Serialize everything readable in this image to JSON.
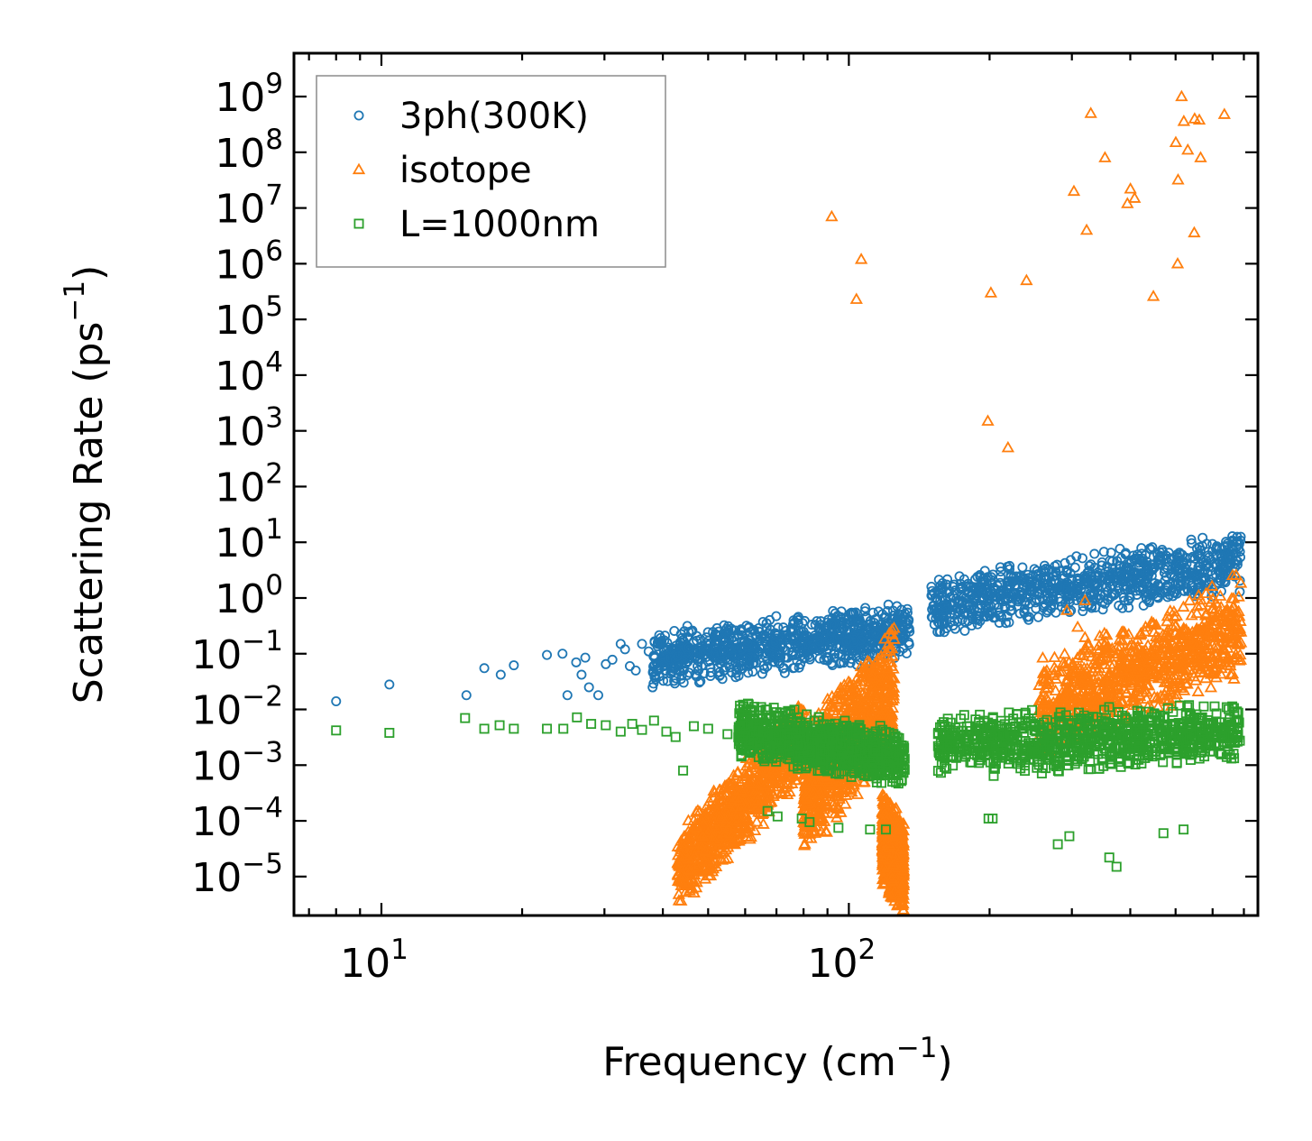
{
  "chart_data": {
    "type": "scatter",
    "title": "",
    "xlabel": "Frequency (cm",
    "xlabel_sup": "−1",
    "xlabel_end": ")",
    "ylabel": "Scattering Rate (ps",
    "ylabel_sup": "−1",
    "ylabel_end": ")",
    "xscale": "log",
    "yscale": "log",
    "xlim": [
      6.5,
      750
    ],
    "ylim": [
      2e-06,
      6000000000.0
    ],
    "x_ticks": [
      {
        "value": 10,
        "base": "10",
        "exp": "1"
      },
      {
        "value": 100,
        "base": "10",
        "exp": "2"
      }
    ],
    "y_ticks": [
      {
        "value": 1000000000.0,
        "base": "10",
        "exp": "9"
      },
      {
        "value": 100000000.0,
        "base": "10",
        "exp": "8"
      },
      {
        "value": 10000000.0,
        "base": "10",
        "exp": "7"
      },
      {
        "value": 1000000.0,
        "base": "10",
        "exp": "6"
      },
      {
        "value": 100000.0,
        "base": "10",
        "exp": "5"
      },
      {
        "value": 10000.0,
        "base": "10",
        "exp": "4"
      },
      {
        "value": 1000.0,
        "base": "10",
        "exp": "3"
      },
      {
        "value": 100.0,
        "base": "10",
        "exp": "2"
      },
      {
        "value": 10.0,
        "base": "10",
        "exp": "1"
      },
      {
        "value": 1.0,
        "base": "10",
        "exp": "0"
      },
      {
        "value": 0.1,
        "base": "10",
        "exp": "−1"
      },
      {
        "value": 0.01,
        "base": "10",
        "exp": "−2"
      },
      {
        "value": 0.001,
        "base": "10",
        "exp": "−3"
      },
      {
        "value": 0.0001,
        "base": "10",
        "exp": "−4"
      },
      {
        "value": 1e-05,
        "base": "10",
        "exp": "−5"
      }
    ],
    "legend_position": "upper-left",
    "series": [
      {
        "name": "3ph(300K)",
        "marker": "circle",
        "color": "#1f77b4",
        "points": [
          [
            8.0,
            0.014
          ],
          [
            10.4,
            0.028
          ],
          [
            15.2,
            0.018
          ],
          [
            16.6,
            0.055
          ],
          [
            18.0,
            0.042
          ],
          [
            19.2,
            0.062
          ],
          [
            22.6,
            0.095
          ],
          [
            24.4,
            0.1
          ],
          [
            25.0,
            0.018
          ],
          [
            26.1,
            0.07
          ],
          [
            26.8,
            0.042
          ],
          [
            27.3,
            0.085
          ],
          [
            27.8,
            0.025
          ],
          [
            29.1,
            0.018
          ],
          [
            30.2,
            0.065
          ],
          [
            31.2,
            0.078
          ],
          [
            32.5,
            0.15
          ],
          [
            33.2,
            0.12
          ],
          [
            34.0,
            0.06
          ],
          [
            35.0,
            0.05
          ],
          [
            36.1,
            0.15
          ],
          [
            37.3,
            0.11
          ],
          [
            38.4,
            0.16
          ],
          [
            39.0,
            0.15
          ],
          [
            40.3,
            0.06
          ],
          [
            41.7,
            0.12
          ],
          [
            43.0,
            0.09
          ],
          [
            44.3,
            0.05
          ],
          [
            45.5,
            0.13
          ],
          [
            47.0,
            0.09
          ],
          [
            48.4,
            0.06
          ],
          [
            50.0,
            0.12
          ],
          [
            52.0,
            0.075
          ],
          [
            54.0,
            0.05
          ],
          [
            56.3,
            0.09
          ],
          [
            98.7,
            0.45
          ]
        ],
        "bands": [
          {
            "x_from": 38,
            "x_to": 135,
            "y_from": 0.08,
            "y_to": 0.26,
            "y_spread": 0.55
          },
          {
            "x_from": 150,
            "x_to": 690,
            "y_from": 0.7,
            "y_to": 4.5,
            "y_spread": 0.6
          }
        ]
      },
      {
        "name": "isotope",
        "marker": "triangle",
        "color": "#ff7f0e",
        "points": [
          [
            91.9,
            7000000.0
          ],
          [
            103.8,
            230000.0
          ],
          [
            106.3,
            1200000.0
          ],
          [
            198.3,
            1500.0
          ],
          [
            201.3,
            300000.0
          ],
          [
            219.0,
            500
          ],
          [
            239.9,
            500000.0
          ],
          [
            303.0,
            20000000.0
          ],
          [
            322.6,
            4000000.0
          ],
          [
            329.3,
            500000000.0
          ],
          [
            353.1,
            80000000.0
          ],
          [
            394.4,
            12000000.0
          ],
          [
            400.3,
            22000000.0
          ],
          [
            408.6,
            15000000.0
          ],
          [
            448.2,
            260000.0
          ],
          [
            500.5,
            150000000.0
          ],
          [
            506.1,
            32000000.0
          ],
          [
            515.0,
            1000000000.0
          ],
          [
            520.7,
            360000000.0
          ],
          [
            531.0,
            110000000.0
          ],
          [
            548.1,
            3600000.0
          ],
          [
            549.2,
            400000000.0
          ],
          [
            562.0,
            380000000.0
          ],
          [
            565.6,
            80000000.0
          ],
          [
            635.8,
            480000000.0
          ],
          [
            505.1,
            1000000.0
          ],
          [
            320.0,
            0.9
          ],
          [
            292.7,
            0.6
          ],
          [
            308.7,
            0.3
          ]
        ],
        "bands": [
          {
            "x_from": 43,
            "x_to": 80,
            "y_from": 1.2e-05,
            "y_to": 0.003,
            "y_spread": 0.8
          },
          {
            "x_from": 80,
            "x_to": 125,
            "y_from": 0.0003,
            "y_to": 0.025,
            "y_spread": 1.3
          },
          {
            "x_from": 118,
            "x_to": 131,
            "y_from": 5e-05,
            "y_to": 1.5e-05,
            "y_spread": 0.9
          },
          {
            "x_from": 255,
            "x_to": 690,
            "y_from": 0.01,
            "y_to": 0.3,
            "y_spread": 1.0
          }
        ]
      },
      {
        "name": "L=1000nm",
        "marker": "square",
        "color": "#2ca02c",
        "points": [
          [
            8.0,
            0.0042
          ],
          [
            10.4,
            0.0038
          ],
          [
            15.1,
            0.007
          ],
          [
            16.6,
            0.0045
          ],
          [
            17.9,
            0.0052
          ],
          [
            19.2,
            0.0045
          ],
          [
            22.6,
            0.0045
          ],
          [
            24.5,
            0.0045
          ],
          [
            26.2,
            0.0072
          ],
          [
            28.1,
            0.0055
          ],
          [
            30.2,
            0.0052
          ],
          [
            32.5,
            0.004
          ],
          [
            34.4,
            0.0055
          ],
          [
            36.1,
            0.0043
          ],
          [
            38.3,
            0.0063
          ],
          [
            40.7,
            0.004
          ],
          [
            42.6,
            0.0032
          ],
          [
            44.2,
            0.0008
          ],
          [
            46.6,
            0.005
          ],
          [
            50.0,
            0.0045
          ],
          [
            55.0,
            0.0036
          ],
          [
            67.0,
            0.00015
          ],
          [
            70.4,
            0.00012
          ],
          [
            79.3,
            0.00011
          ],
          [
            82.4,
            9.5e-05
          ],
          [
            95.0,
            7.5e-05
          ],
          [
            111.0,
            7e-05
          ],
          [
            120.0,
            7e-05
          ],
          [
            199.0,
            0.00011
          ],
          [
            203.0,
            0.00011
          ],
          [
            279.9,
            3.8e-05
          ],
          [
            296.3,
            5.3e-05
          ],
          [
            360.7,
            2.2e-05
          ],
          [
            373.8,
            1.5e-05
          ],
          [
            471.0,
            6e-05
          ],
          [
            520.0,
            7e-05
          ]
        ],
        "bands": [
          {
            "x_from": 58,
            "x_to": 132,
            "y_from": 0.0045,
            "y_to": 0.0012,
            "y_spread": 0.55
          },
          {
            "x_from": 155,
            "x_to": 690,
            "y_from": 0.0022,
            "y_to": 0.004,
            "y_spread": 0.6
          }
        ]
      }
    ]
  }
}
